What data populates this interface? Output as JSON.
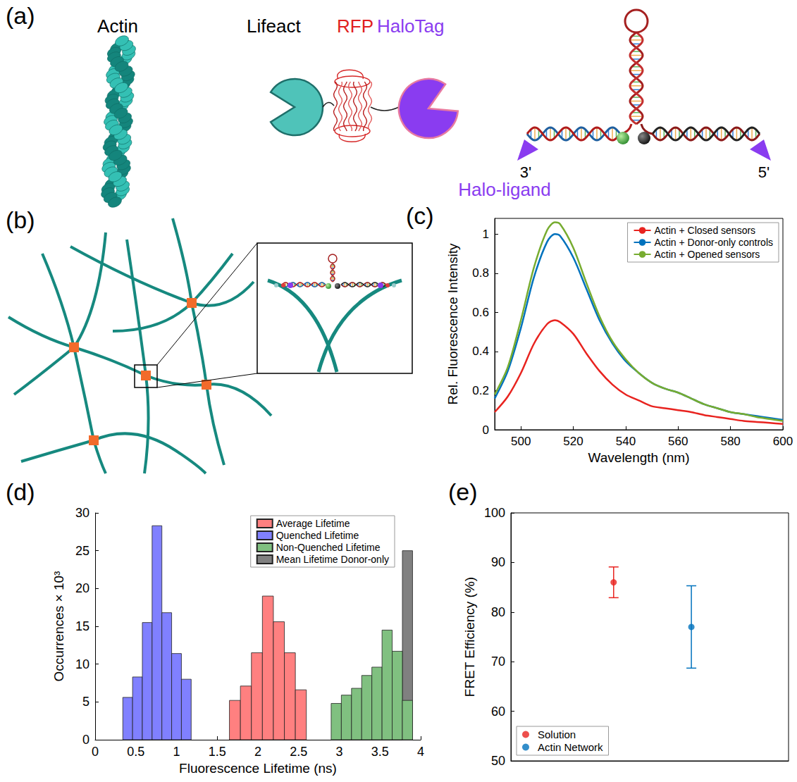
{
  "diagram": {
    "panel_a": {
      "label": "(a)",
      "actin": "Actin",
      "lifeact": "Lifeact",
      "rfp": "RFP",
      "halotag": "HaloTag",
      "strand_3_end": "3'",
      "strand_5_end": "5'",
      "halo_ligand": "Halo-ligand"
    },
    "panel_b": {
      "label": "(b)"
    }
  },
  "chart_data": [
    {
      "panel_label": "(c)",
      "type": "line",
      "x_label": "Wavelength (nm)",
      "y_label": "Rel. Fluorescence Intensity",
      "xlim": [
        490,
        600
      ],
      "xticks": [
        500,
        520,
        540,
        560,
        580,
        600
      ],
      "ylim": [
        0,
        1.08
      ],
      "yticks": [
        0,
        0.2,
        0.4,
        0.6,
        0.8,
        1
      ],
      "legend": "upper right",
      "x": [
        490,
        495,
        500,
        505,
        510,
        513,
        515,
        520,
        525,
        530,
        535,
        540,
        545,
        550,
        555,
        560,
        565,
        570,
        575,
        580,
        585,
        590,
        595,
        600
      ],
      "series": [
        {
          "name": "Actin + Closed sensors",
          "color": "#e8231f",
          "values": [
            0.09,
            0.17,
            0.29,
            0.44,
            0.54,
            0.56,
            0.55,
            0.49,
            0.39,
            0.3,
            0.23,
            0.18,
            0.15,
            0.12,
            0.11,
            0.1,
            0.09,
            0.075,
            0.065,
            0.055,
            0.045,
            0.04,
            0.035,
            0.03
          ]
        },
        {
          "name": "Actin + Donor-only controls",
          "color": "#0072bd",
          "values": [
            0.16,
            0.3,
            0.52,
            0.78,
            0.96,
            1.0,
            0.99,
            0.88,
            0.72,
            0.56,
            0.44,
            0.35,
            0.29,
            0.24,
            0.21,
            0.19,
            0.16,
            0.13,
            0.11,
            0.09,
            0.08,
            0.07,
            0.06,
            0.05
          ]
        },
        {
          "name": "Actin + Opened sensors",
          "color": "#77ac30",
          "values": [
            0.18,
            0.32,
            0.56,
            0.83,
            1.02,
            1.06,
            1.05,
            0.93,
            0.75,
            0.58,
            0.45,
            0.36,
            0.29,
            0.24,
            0.21,
            0.19,
            0.16,
            0.13,
            0.11,
            0.09,
            0.08,
            0.065,
            0.055,
            0.045
          ]
        }
      ]
    },
    {
      "panel_label": "(d)",
      "type": "histogram",
      "x_label": "Fluorescence Lifetime (ns)",
      "y_label": "Occurrences × 10³",
      "xlim": [
        0,
        4
      ],
      "xticks": [
        0,
        0.5,
        1,
        1.5,
        2,
        2.5,
        3,
        3.5,
        4
      ],
      "ylim": [
        0,
        30
      ],
      "yticks": [
        0,
        5,
        10,
        15,
        20,
        25,
        30
      ],
      "legend": "upper right",
      "series": [
        {
          "name": "Average Lifetime",
          "color": "#ff8080",
          "bins": [
            1.65,
            1.785,
            1.92,
            2.055,
            2.19,
            2.325,
            2.46,
            2.595
          ],
          "values": [
            5.2,
            7.1,
            11.5,
            19.0,
            15.6,
            11.5,
            6.6
          ]
        },
        {
          "name": "Quenched Lifetime",
          "color": "#8080ff",
          "bins": [
            0.34,
            0.46,
            0.58,
            0.7,
            0.82,
            0.94,
            1.06,
            1.18
          ],
          "values": [
            5.6,
            8.3,
            15.5,
            28.3,
            16.8,
            11.4,
            8.0
          ]
        },
        {
          "name": "Non-Quenched Lifetime",
          "color": "#80c080",
          "bins": [
            2.9,
            3.025,
            3.15,
            3.275,
            3.4,
            3.525,
            3.65,
            3.775,
            3.9
          ],
          "values": [
            4.8,
            5.9,
            6.8,
            8.5,
            9.6,
            14.5,
            11.7,
            5.2
          ]
        },
        {
          "name": "Mean Lifetime Donor-only",
          "color": "#808080",
          "bins": [
            3.775,
            3.9
          ],
          "values": [
            25
          ]
        }
      ]
    },
    {
      "panel_label": "(e)",
      "type": "scatter",
      "y_label": "FRET Efficiency (%)",
      "xlim": [
        0,
        1
      ],
      "ylim": [
        50,
        100
      ],
      "yticks": [
        50,
        60,
        70,
        80,
        90,
        100
      ],
      "tick_labels": "y",
      "legend": "lower left",
      "series": [
        {
          "name": "Solution",
          "color": "#e8231f",
          "marker": "circle",
          "x": [
            0.37
          ],
          "values": [
            86
          ],
          "errors": [
            3.1
          ]
        },
        {
          "name": "Actin Network",
          "color": "#0072bd",
          "marker": "circle",
          "x": [
            0.65
          ],
          "values": [
            77
          ],
          "errors": [
            8.3
          ]
        }
      ]
    }
  ]
}
